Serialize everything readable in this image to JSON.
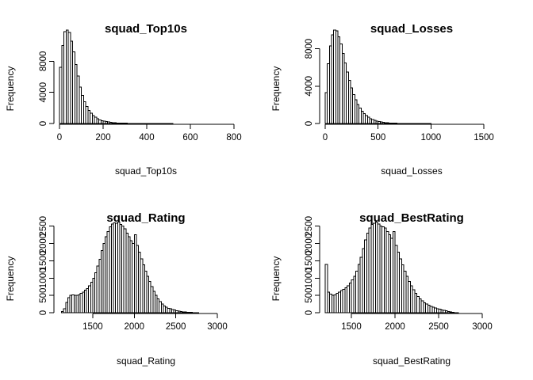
{
  "chart_data": [
    {
      "type": "histogram",
      "title": "squad_Top10s",
      "xlabel": "squad_Top10s",
      "ylabel": "Frequency",
      "bin_start": 0,
      "bin_width": 10,
      "xlim": [
        0,
        800
      ],
      "ylim": [
        0,
        12000
      ],
      "x_ticks": [
        0,
        200,
        400,
        600,
        800
      ],
      "y_ticks": [
        0,
        4000,
        8000
      ],
      "values": [
        7200,
        10000,
        11800,
        12000,
        11700,
        10600,
        9200,
        7600,
        6100,
        4700,
        3600,
        2800,
        2200,
        1700,
        1300,
        1000,
        800,
        600,
        480,
        380,
        300,
        240,
        190,
        150,
        120,
        95,
        75,
        60,
        48,
        38,
        30,
        24,
        19,
        15,
        12,
        10,
        8,
        6,
        5,
        4,
        3,
        3,
        2,
        2,
        2,
        1,
        1,
        1,
        1,
        1,
        1,
        1,
        0,
        0,
        0,
        0,
        0,
        0,
        0,
        0,
        0,
        0,
        0,
        0,
        0,
        0,
        0,
        0,
        0,
        0,
        0,
        0,
        0,
        0,
        0,
        0,
        0,
        0,
        0,
        0
      ]
    },
    {
      "type": "histogram",
      "title": "squad_Losses",
      "xlabel": "squad_Losses",
      "ylabel": "Frequency",
      "bin_start": 0,
      "bin_width": 20,
      "xlim": [
        0,
        1650
      ],
      "ylim": [
        0,
        10000
      ],
      "x_ticks": [
        0,
        500,
        1000,
        1500
      ],
      "y_ticks": [
        0,
        4000,
        8000
      ],
      "values": [
        3300,
        6400,
        8300,
        9500,
        10000,
        9900,
        9300,
        8500,
        7500,
        6500,
        5500,
        4600,
        3800,
        3100,
        2550,
        2050,
        1650,
        1320,
        1050,
        830,
        660,
        520,
        410,
        320,
        250,
        195,
        150,
        115,
        90,
        70,
        55,
        43,
        33,
        26,
        20,
        15,
        12,
        9,
        7,
        5,
        4,
        3,
        3,
        2,
        2,
        1,
        1,
        1,
        1,
        1,
        0,
        0,
        0,
        0,
        0,
        0,
        0,
        0,
        0,
        0,
        0,
        0,
        0,
        0,
        0,
        0,
        0,
        0,
        0,
        0,
        0,
        0,
        0,
        0,
        0,
        0,
        0,
        0,
        0,
        0,
        0,
        0
      ]
    },
    {
      "type": "histogram",
      "title": "squad_Rating",
      "xlabel": "squad_Rating",
      "ylabel": "Frequency",
      "bin_start": 1125,
      "bin_width": 25,
      "xlim": [
        1100,
        3200
      ],
      "ylim": [
        0,
        2700
      ],
      "x_ticks": [
        1500,
        2000,
        2500,
        3000
      ],
      "y_ticks": [
        0,
        500,
        1000,
        1500,
        2000,
        2500
      ],
      "values": [
        40,
        120,
        300,
        430,
        500,
        520,
        500,
        500,
        520,
        560,
        600,
        650,
        700,
        780,
        880,
        1000,
        1150,
        1350,
        1550,
        1800,
        2000,
        2200,
        2350,
        2480,
        2560,
        2600,
        2580,
        2620,
        2550,
        2500,
        2420,
        2300,
        2200,
        2080,
        2000,
        2250,
        1950,
        1750,
        1560,
        1380,
        1200,
        1050,
        900,
        760,
        620,
        500,
        400,
        320,
        250,
        200,
        160,
        130,
        110,
        90,
        75,
        60,
        48,
        38,
        28,
        20,
        14,
        10,
        6,
        4,
        2,
        1,
        0,
        0
      ]
    },
    {
      "type": "histogram",
      "title": "squad_BestRating",
      "xlabel": "squad_BestRating",
      "ylabel": "Frequency",
      "bin_start": 1200,
      "bin_width": 25,
      "xlim": [
        1200,
        3200
      ],
      "ylim": [
        0,
        2700
      ],
      "x_ticks": [
        1500,
        2000,
        2500,
        3000
      ],
      "y_ticks": [
        0,
        500,
        1000,
        1500,
        2000,
        2500
      ],
      "values": [
        1400,
        600,
        540,
        500,
        520,
        560,
        600,
        640,
        680,
        720,
        780,
        860,
        950,
        1050,
        1200,
        1400,
        1600,
        1850,
        2100,
        2300,
        2450,
        2550,
        2580,
        2620,
        2560,
        2500,
        2480,
        2450,
        2350,
        2250,
        2150,
        2350,
        1950,
        1750,
        1560,
        1380,
        1200,
        1050,
        900,
        780,
        660,
        560,
        470,
        400,
        340,
        290,
        250,
        215,
        185,
        160,
        140,
        120,
        100,
        85,
        70,
        55,
        40,
        25,
        12,
        5,
        2,
        0
      ]
    }
  ]
}
